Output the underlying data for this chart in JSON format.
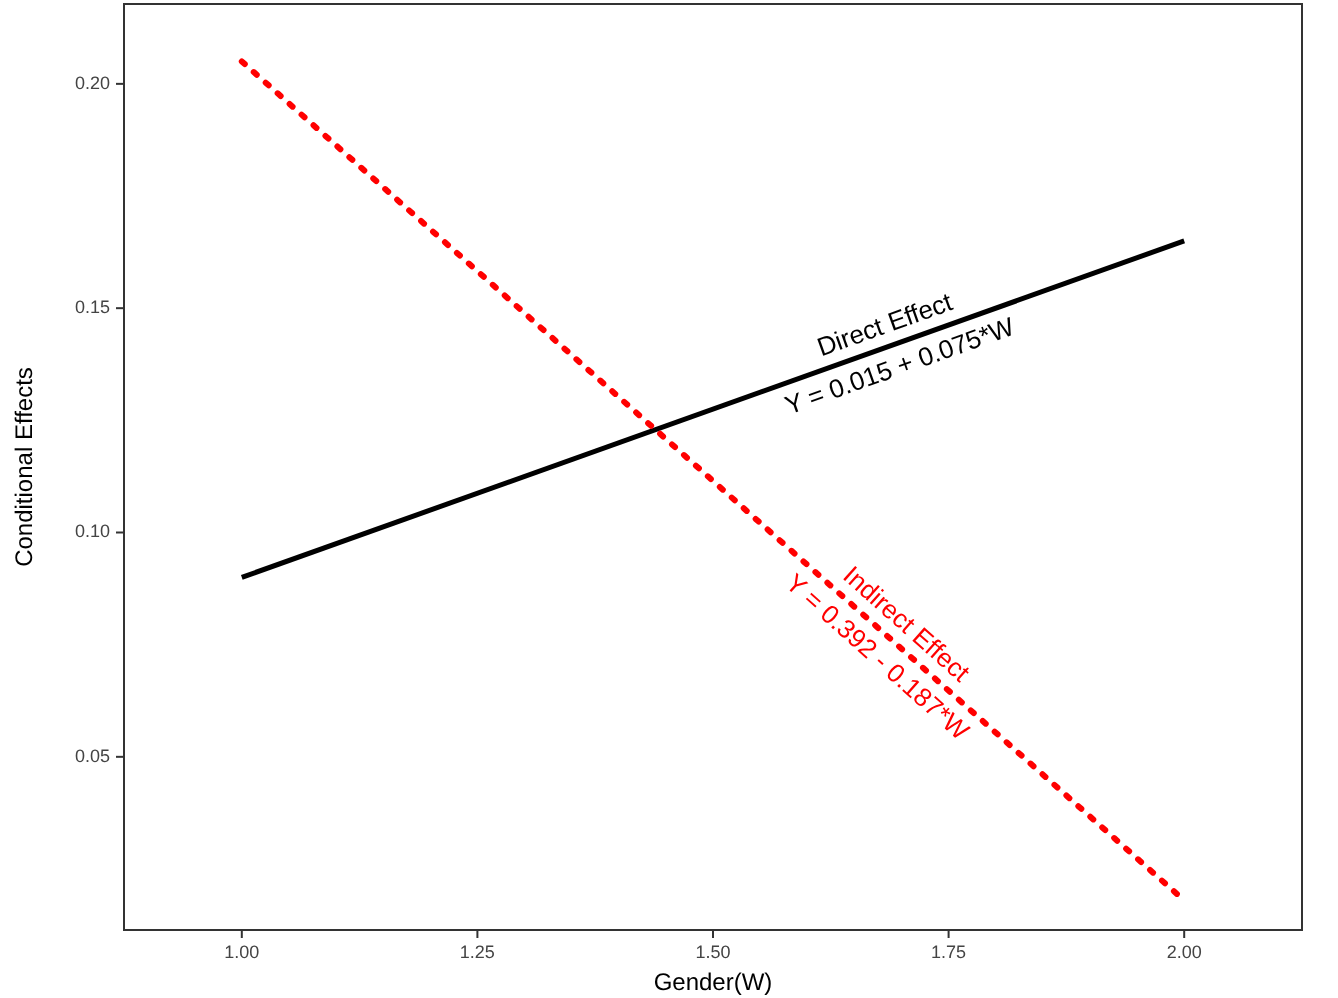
{
  "chart_data": {
    "type": "line",
    "xlabel": "Gender(W)",
    "ylabel": "Conditional Effects",
    "x": [
      1,
      2
    ],
    "series": [
      {
        "color": "#000000",
        "values": [
          0.09,
          0.165
        ],
        "line_style": "solid"
      },
      {
        "color": "#ff0000",
        "values": [
          0.205,
          0.018
        ],
        "line_style": "dotted"
      }
    ],
    "xlim": [
      0.875,
      2.125
    ],
    "xticks": [
      {
        "value": 1,
        "label": "1.00"
      },
      {
        "value": 1.25,
        "label": "1.25"
      },
      {
        "value": 1.5,
        "label": "1.50"
      },
      {
        "value": 1.75,
        "label": "1.75"
      },
      {
        "value": 2,
        "label": "2.00"
      }
    ],
    "ylim": [
      0.0114,
      0.2178
    ],
    "yticks": [
      {
        "value": 0.05,
        "label": "0.05"
      },
      {
        "value": 0.1,
        "label": "0.10"
      },
      {
        "value": 0.15,
        "label": "0.15"
      },
      {
        "value": 0.2,
        "label": "0.20"
      }
    ],
    "grid": false,
    "annotations": [
      "Direct Effect",
      "Y = 0.015 + 0.075*W",
      "Indirect Effect",
      "Y = 0.392 - 0.187*W"
    ]
  }
}
